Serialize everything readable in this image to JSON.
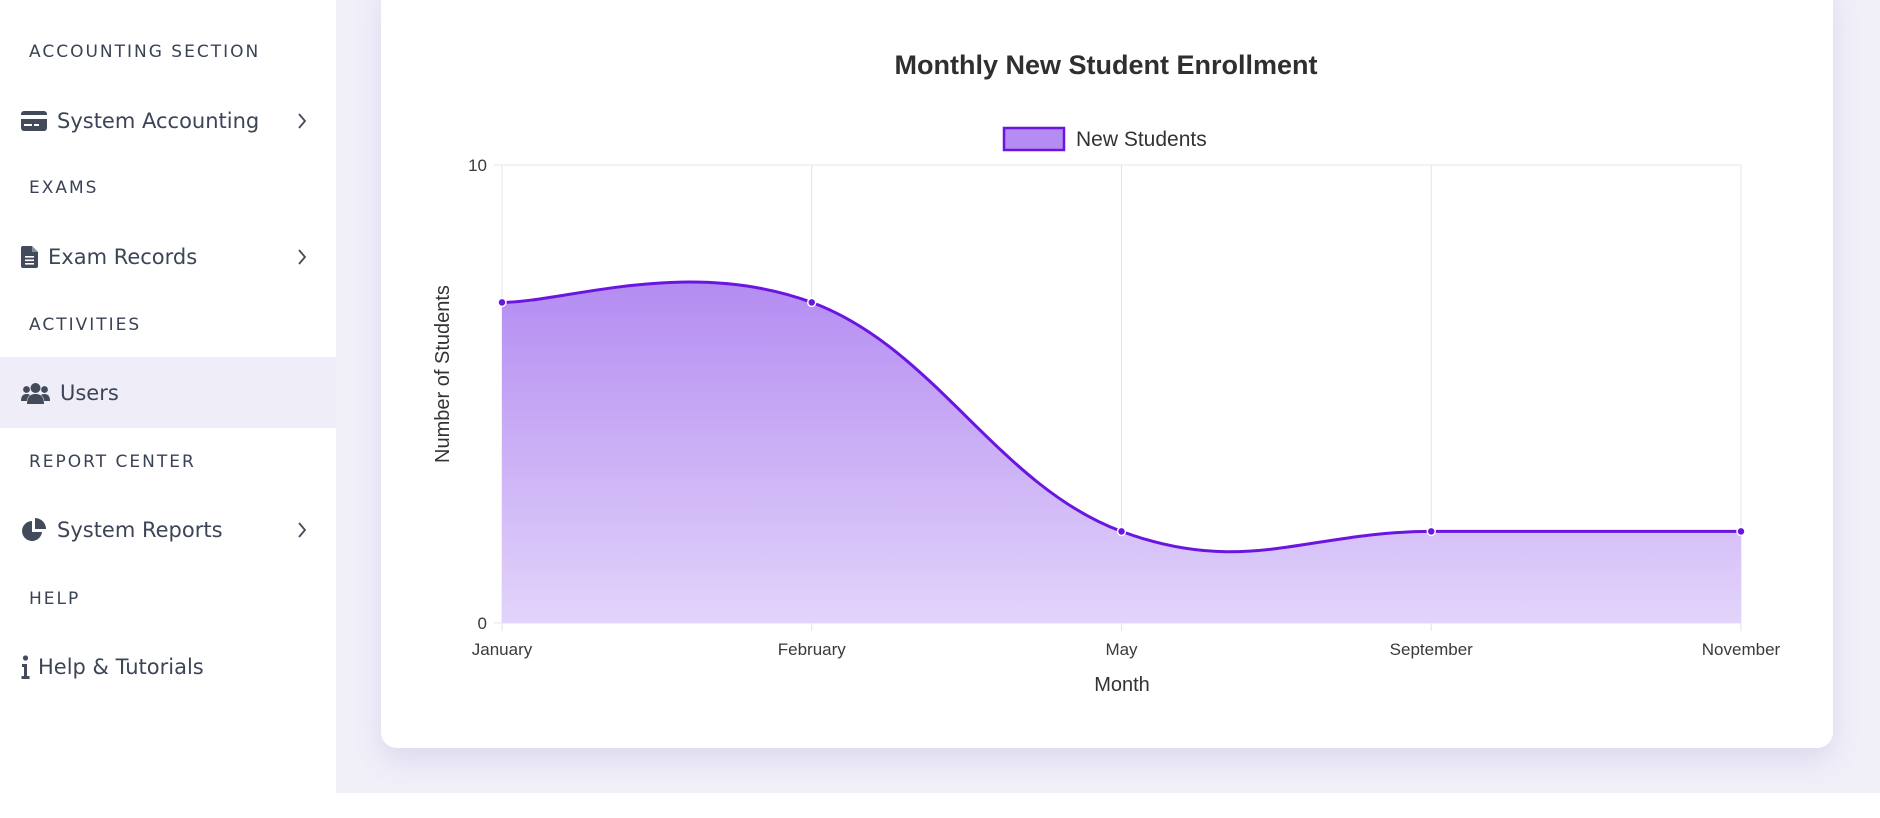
{
  "sidebar": {
    "sections": [
      {
        "title": "ACCOUNTING SECTION"
      },
      {
        "title": "EXAMS"
      },
      {
        "title": "ACTIVITIES"
      },
      {
        "title": "REPORT CENTER"
      },
      {
        "title": "HELP"
      }
    ],
    "items": [
      {
        "label": "System Accounting",
        "icon": "credit-card-icon",
        "has_submenu": true,
        "active": false
      },
      {
        "label": "Exam Records",
        "icon": "file-icon",
        "has_submenu": true,
        "active": false
      },
      {
        "label": "Users",
        "icon": "users-icon",
        "has_submenu": false,
        "active": true
      },
      {
        "label": "System Reports",
        "icon": "pie-chart-icon",
        "has_submenu": true,
        "active": false
      },
      {
        "label": "Help & Tutorials",
        "icon": "info-icon",
        "has_submenu": false,
        "active": false
      }
    ]
  },
  "colors": {
    "accent": "#6a16e0",
    "fill_top": "#b48cf2",
    "fill_bottom": "#e2d4fa",
    "active_bg": "#efedf8",
    "content_bg": "#f1f0f9"
  },
  "chart_data": {
    "type": "area",
    "title": "Monthly New Student Enrollment",
    "xlabel": "Month",
    "ylabel": "Number of Students",
    "categories": [
      "January",
      "February",
      "May",
      "September",
      "November"
    ],
    "series": [
      {
        "name": "New Students",
        "values": [
          7,
          7,
          2,
          2,
          2
        ]
      }
    ],
    "ylim": [
      0,
      10
    ],
    "yticks": [
      "0",
      "10"
    ],
    "grid": true,
    "legend": "top-center",
    "smooth": true
  }
}
